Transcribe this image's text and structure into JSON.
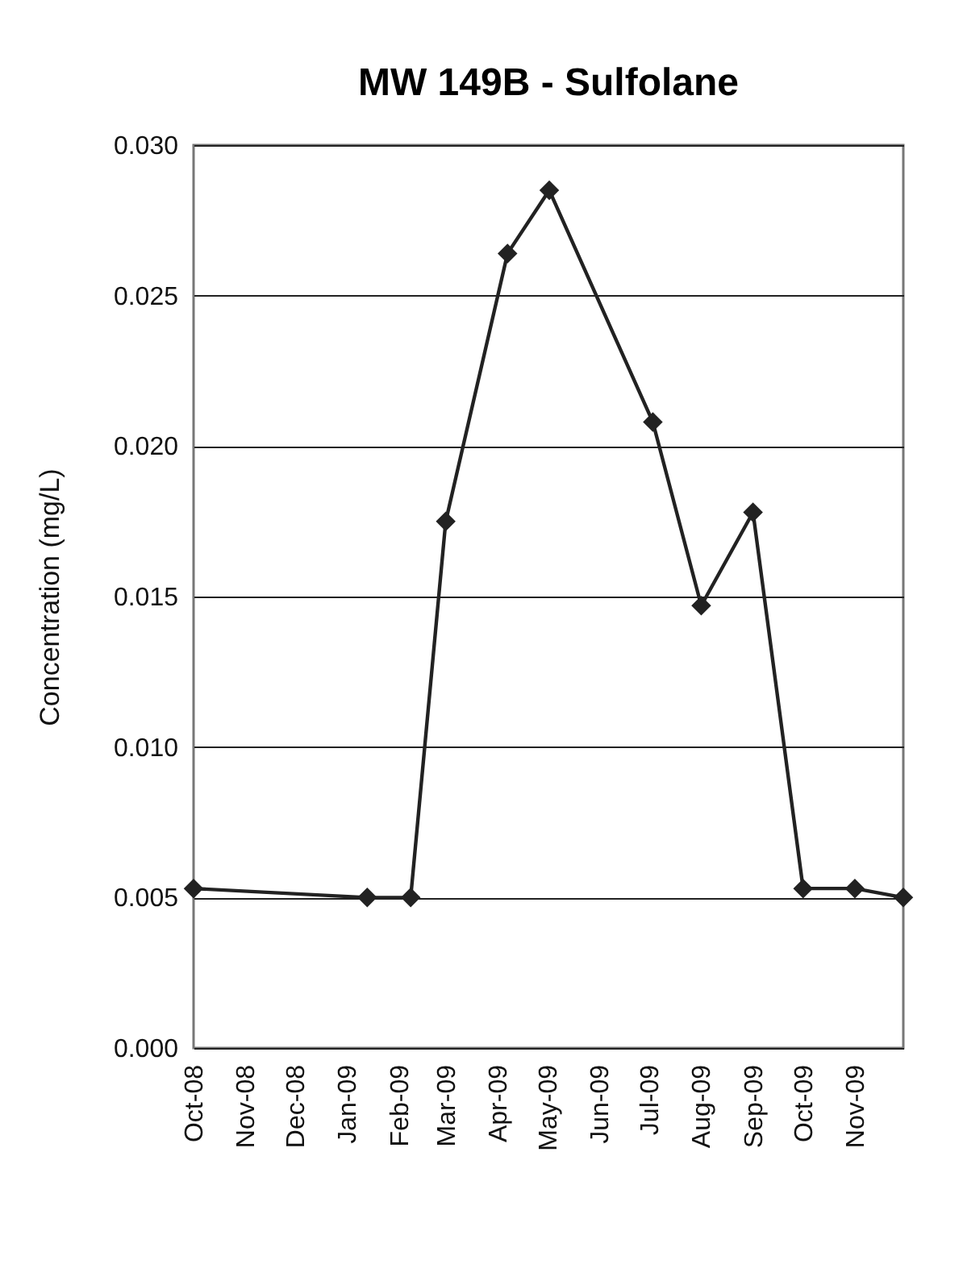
{
  "chart_data": {
    "type": "line",
    "title": "MW 149B - Sulfolane",
    "ylabel": "Concentration (mg/L)",
    "x": [
      "2008-10-01",
      "2009-01-13",
      "2009-02-08",
      "2009-03-01",
      "2009-04-07",
      "2009-05-02",
      "2009-07-03",
      "2009-08-01",
      "2009-09-01",
      "2009-10-01",
      "2009-11-01",
      "2009-11-30"
    ],
    "series": [
      {
        "color": "#222222",
        "values": [
          0.0053,
          0.005,
          0.005,
          0.0175,
          0.0264,
          0.0285,
          0.0208,
          0.0147,
          0.0178,
          0.0053,
          0.0053,
          0.005
        ]
      }
    ],
    "xlim": [
      "2008-10-01",
      "2009-11-30"
    ],
    "xticks": [
      {
        "value": "2008-10-01",
        "label": "Oct-08"
      },
      {
        "value": "2008-11-01",
        "label": "Nov-08"
      },
      {
        "value": "2008-12-01",
        "label": "Dec-08"
      },
      {
        "value": "2009-01-01",
        "label": "Jan-09"
      },
      {
        "value": "2009-02-01",
        "label": "Feb-09"
      },
      {
        "value": "2009-03-01",
        "label": "Mar-09"
      },
      {
        "value": "2009-04-01",
        "label": "Apr-09"
      },
      {
        "value": "2009-05-01",
        "label": "May-09"
      },
      {
        "value": "2009-06-01",
        "label": "Jun-09"
      },
      {
        "value": "2009-07-01",
        "label": "Jul-09"
      },
      {
        "value": "2009-08-01",
        "label": "Aug-09"
      },
      {
        "value": "2009-09-01",
        "label": "Sep-09"
      },
      {
        "value": "2009-10-01",
        "label": "Oct-09"
      },
      {
        "value": "2009-11-01",
        "label": "Nov-09"
      }
    ],
    "ylim": [
      0,
      0.03
    ],
    "yticks": [
      {
        "value": 0,
        "label": "0.000"
      },
      {
        "value": 0.005,
        "label": "0.005"
      },
      {
        "value": 0.01,
        "label": "0.010"
      },
      {
        "value": 0.015,
        "label": "0.015"
      },
      {
        "value": 0.02,
        "label": "0.020"
      },
      {
        "value": 0.025,
        "label": "0.025"
      },
      {
        "value": 0.03,
        "label": "0.030"
      }
    ],
    "grid": "y",
    "marker": "diamond",
    "line_style": "solid"
  }
}
